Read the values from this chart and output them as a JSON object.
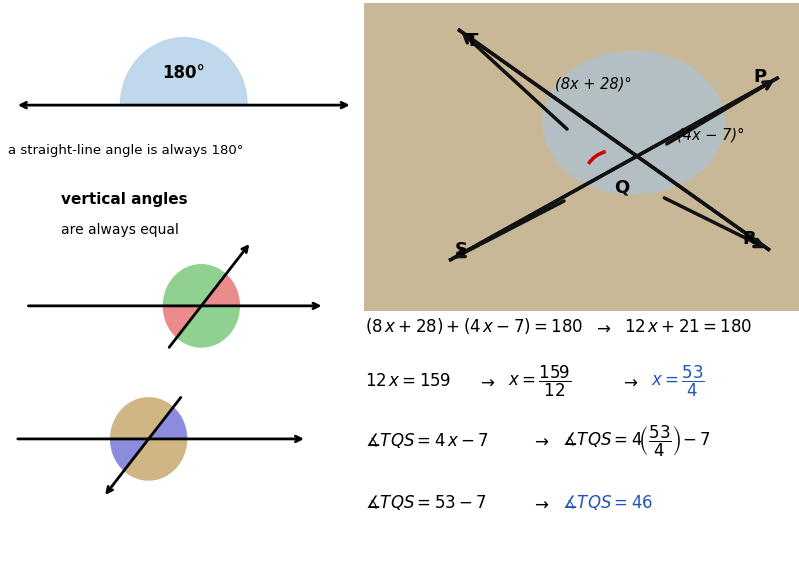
{
  "bg_color": "#ffffff",
  "label_straight": "a straight-line angle is always 180°",
  "vert_angles_title": "vertical angles",
  "vert_angles_sub": "are always equal",
  "photo_bg": "#c8b898",
  "blue_circle_color": "#a8c4e0",
  "red_arc_color": "#cc0000",
  "green_color": "#7dc87d",
  "red_color": "#e87878",
  "blue_color": "#7878d8",
  "tan_color": "#c8a870",
  "eq_blue": "#2255bb"
}
